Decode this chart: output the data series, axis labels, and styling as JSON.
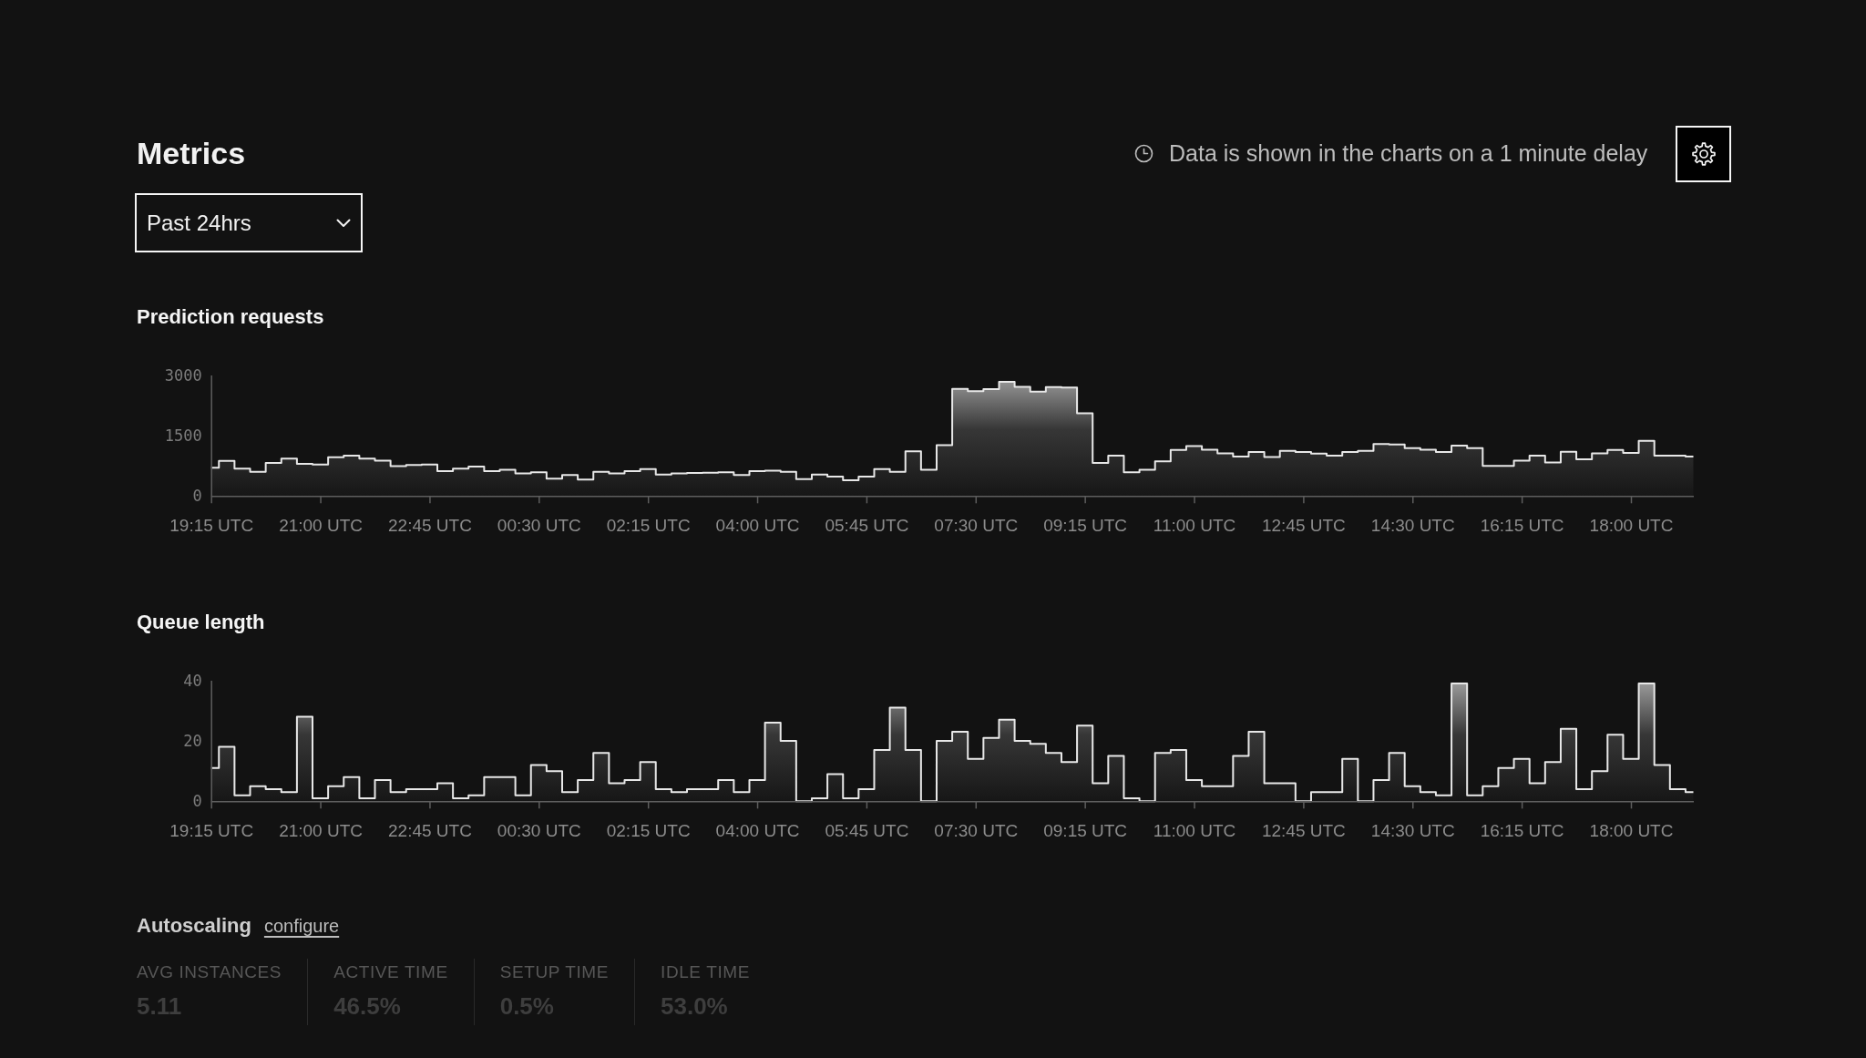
{
  "chart_data": [
    {
      "type": "other",
      "title": "Metrics",
      "annotations": [
        "Past 24hrs",
        "Data is shown in the charts on a 1 minute delay"
      ]
    },
    {
      "type": "area",
      "title": "Prediction requests",
      "categories": [
        "19:15 UTC",
        null,
        null,
        null,
        null,
        null,
        null,
        "21:00 UTC",
        null,
        null,
        null,
        null,
        null,
        null,
        "22:45 UTC",
        null,
        null,
        null,
        null,
        null,
        null,
        "00:30 UTC",
        null,
        null,
        null,
        null,
        null,
        null,
        "02:15 UTC",
        null,
        null,
        null,
        null,
        null,
        null,
        "04:00 UTC",
        null,
        null,
        null,
        null,
        null,
        null,
        "05:45 UTC",
        null,
        null,
        null,
        null,
        null,
        null,
        "07:30 UTC",
        null,
        null,
        null,
        null,
        null,
        null,
        "09:15 UTC",
        null,
        null,
        null,
        null,
        null,
        null,
        "11:00 UTC",
        null,
        null,
        null,
        null,
        null,
        null,
        "12:45 UTC",
        null,
        null,
        null,
        null,
        null,
        null,
        "14:30 UTC",
        null,
        null,
        null,
        null,
        null,
        null,
        "16:15 UTC",
        null,
        null,
        null,
        null,
        null,
        null,
        "18:00 UTC",
        null,
        null,
        null,
        null
      ],
      "values": [
        700,
        870,
        680,
        600,
        820,
        930,
        800,
        780,
        960,
        1000,
        930,
        880,
        740,
        770,
        780,
        620,
        680,
        730,
        620,
        650,
        560,
        590,
        430,
        520,
        410,
        600,
        560,
        620,
        670,
        530,
        560,
        570,
        580,
        590,
        520,
        620,
        630,
        600,
        420,
        530,
        480,
        390,
        480,
        670,
        600,
        1110,
        650,
        1260,
        2660,
        2600,
        2650,
        2830,
        2710,
        2590,
        2700,
        2690,
        2050,
        820,
        1000,
        590,
        650,
        860,
        1140,
        1240,
        1150,
        1060,
        980,
        1090,
        970,
        1120,
        1090,
        1050,
        1000,
        1090,
        1120,
        1290,
        1280,
        1190,
        1150,
        1090,
        1250,
        1190,
        750,
        750,
        880,
        1000,
        830,
        1100,
        910,
        1060,
        1140,
        1070,
        1370,
        1000,
        1000,
        980
      ],
      "color": "#e8e8e8",
      "ylim": [
        0,
        3000
      ],
      "yticks": [
        0,
        1500,
        3000
      ]
    },
    {
      "type": "area",
      "title": "Queue length",
      "categories": [
        "19:15 UTC",
        null,
        null,
        null,
        null,
        null,
        null,
        "21:00 UTC",
        null,
        null,
        null,
        null,
        null,
        null,
        "22:45 UTC",
        null,
        null,
        null,
        null,
        null,
        null,
        "00:30 UTC",
        null,
        null,
        null,
        null,
        null,
        null,
        "02:15 UTC",
        null,
        null,
        null,
        null,
        null,
        null,
        "04:00 UTC",
        null,
        null,
        null,
        null,
        null,
        null,
        "05:45 UTC",
        null,
        null,
        null,
        null,
        null,
        null,
        "07:30 UTC",
        null,
        null,
        null,
        null,
        null,
        null,
        "09:15 UTC",
        null,
        null,
        null,
        null,
        null,
        null,
        "11:00 UTC",
        null,
        null,
        null,
        null,
        null,
        null,
        "12:45 UTC",
        null,
        null,
        null,
        null,
        null,
        null,
        "14:30 UTC",
        null,
        null,
        null,
        null,
        null,
        null,
        "16:15 UTC",
        null,
        null,
        null,
        null,
        null,
        null,
        "18:00 UTC",
        null,
        null,
        null,
        null
      ],
      "values": [
        11,
        18,
        2,
        5,
        4,
        3,
        28,
        1,
        5,
        8,
        1,
        7,
        3,
        4,
        4,
        6,
        1,
        2,
        8,
        8,
        2,
        12,
        10,
        3,
        7,
        16,
        6,
        7,
        13,
        4,
        3,
        4,
        4,
        7,
        3,
        7,
        26,
        20,
        0,
        1,
        9,
        1,
        4,
        17,
        31,
        17,
        0,
        20,
        23,
        14,
        21,
        27,
        20,
        19,
        16,
        13,
        25,
        6,
        15,
        1,
        0,
        16,
        17,
        7,
        5,
        5,
        15,
        23,
        6,
        6,
        0,
        3,
        3,
        14,
        0,
        7,
        16,
        5,
        3,
        2,
        39,
        2,
        5,
        11,
        14,
        6,
        13,
        24,
        4,
        10,
        22,
        14,
        39,
        12,
        4,
        3
      ],
      "color": "#e8e8e8",
      "ylim": [
        0,
        40
      ],
      "yticks": [
        0,
        20,
        40
      ]
    },
    {
      "type": "other",
      "title": "Autoscaling",
      "annotations": [
        "configure",
        "AVG INSTANCES",
        "5.11",
        "ACTIVE TIME",
        "46.5%",
        "SETUP TIME",
        "0.5%",
        "IDLE TIME",
        "53.0%"
      ]
    }
  ]
}
